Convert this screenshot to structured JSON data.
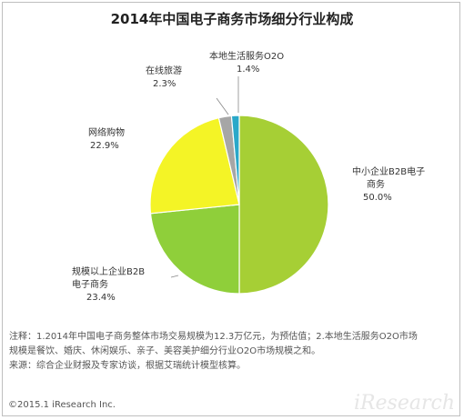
{
  "chart_data": {
    "type": "pie",
    "title": "2014年中国电子商务市场细分行业构成",
    "slices": [
      {
        "name": "中小企业B2B电子商务",
        "label_lines": [
          "中小企业B2B电子",
          "商务"
        ],
        "value": 50.0,
        "value_label": "50.0%",
        "color": "#a6cf35"
      },
      {
        "name": "规模以上企业B2B电子商务",
        "label_lines": [
          "规模以上企业B2B",
          "电子商务"
        ],
        "value": 23.4,
        "value_label": "23.4%",
        "color": "#8fcf3a"
      },
      {
        "name": "网络购物",
        "label_lines": [
          "网络购物"
        ],
        "value": 22.9,
        "value_label": "22.9%",
        "color": "#f4f426"
      },
      {
        "name": "在线旅游",
        "label_lines": [
          "在线旅游"
        ],
        "value": 2.3,
        "value_label": "2.3%",
        "color": "#a6a6a6"
      },
      {
        "name": "本地生活服务O2O",
        "label_lines": [
          "本地生活服务O2O"
        ],
        "value": 1.4,
        "value_label": "1.4%",
        "color": "#2aa8c9"
      }
    ]
  },
  "notes": {
    "line1": "注释：1.2014年中国电子商务整体市场交易规模为12.3万亿元，为预估值；2.本地生活服务O2O市场",
    "line2": "规模是餐饮、婚庆、休闲娱乐、亲子、美容美护细分行业O2O市场规模之和。",
    "line3": "来源：综合企业财报及专家访谈，根据艾瑞统计模型核算。"
  },
  "footer": "©2015.1 iResearch Inc.",
  "watermark": "iResearch"
}
